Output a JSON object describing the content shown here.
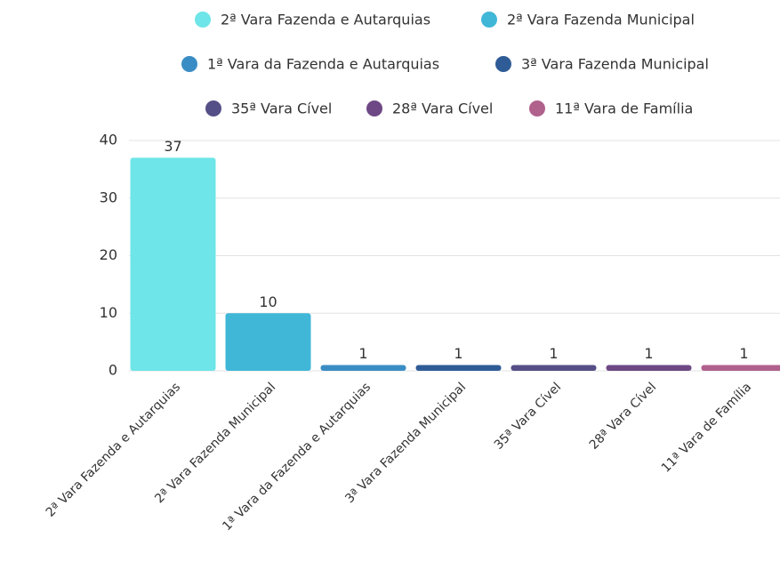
{
  "chart_data": {
    "type": "bar",
    "categories": [
      "2ª Vara Fazenda e Autarquias",
      "2ª Vara Fazenda Municipal",
      "1ª Vara da Fazenda e Autarquias",
      "3ª Vara Fazenda Municipal",
      "35ª Vara Cível",
      "28ª Vara Cível",
      "11ª Vara de Família"
    ],
    "values": [
      37,
      10,
      1,
      1,
      1,
      1,
      1
    ],
    "colors": [
      "#6ee5e8",
      "#41b7d8",
      "#3a8dc4",
      "#2f5c96",
      "#544f86",
      "#6e4884",
      "#b0618c"
    ],
    "ylim": [
      0,
      40
    ],
    "yticks": [
      0,
      10,
      20,
      30,
      40
    ],
    "grid": true
  }
}
